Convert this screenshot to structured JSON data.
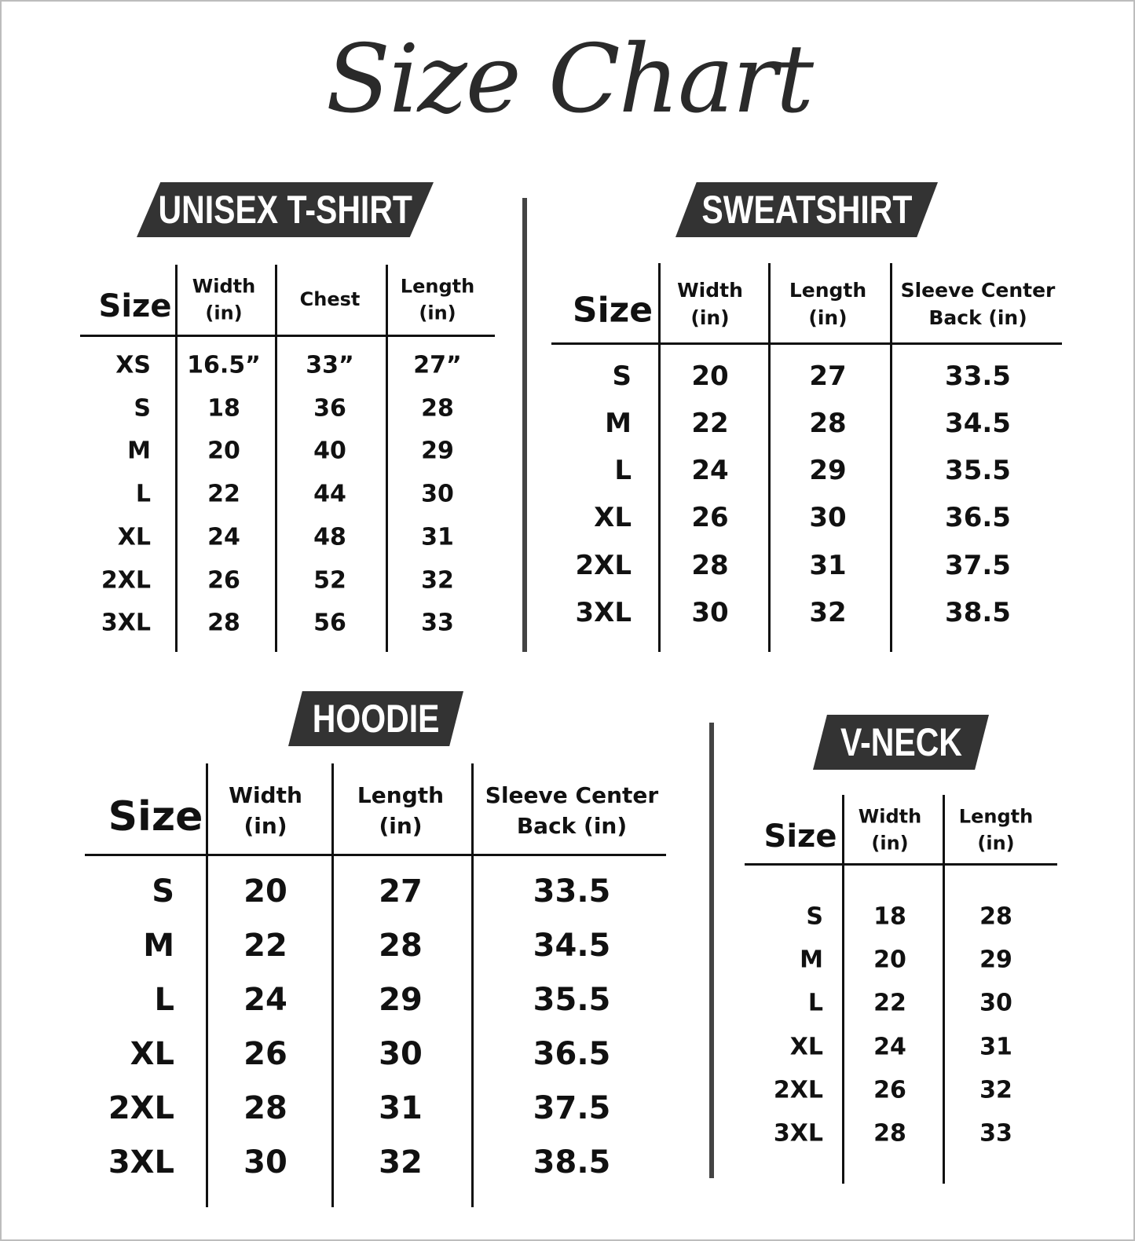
{
  "title": "Size Chart",
  "tables": [
    {
      "name": "UNISEX T-SHIRT",
      "headers": [
        "Size",
        "Width (in)",
        "Chest",
        "Length (in)"
      ],
      "rows": [
        [
          "XS",
          "16.5”",
          "33”",
          "27”"
        ],
        [
          "S",
          "18",
          "36",
          "28"
        ],
        [
          "M",
          "20",
          "40",
          "29"
        ],
        [
          "L",
          "22",
          "44",
          "30"
        ],
        [
          "XL",
          "24",
          "48",
          "31"
        ],
        [
          "2XL",
          "26",
          "52",
          "32"
        ],
        [
          "3XL",
          "28",
          "56",
          "33"
        ]
      ]
    },
    {
      "name": "SWEATSHIRT",
      "headers": [
        "Size",
        "Width (in)",
        "Length (in)",
        "Sleeve Center Back (in)"
      ],
      "rows": [
        [
          "S",
          "20",
          "27",
          "33.5"
        ],
        [
          "M",
          "22",
          "28",
          "34.5"
        ],
        [
          "L",
          "24",
          "29",
          "35.5"
        ],
        [
          "XL",
          "26",
          "30",
          "36.5"
        ],
        [
          "2XL",
          "28",
          "31",
          "37.5"
        ],
        [
          "3XL",
          "30",
          "32",
          "38.5"
        ]
      ]
    },
    {
      "name": "HOODIE",
      "headers": [
        "Size",
        "Width (in)",
        "Length (in)",
        "Sleeve Center Back (in)"
      ],
      "rows": [
        [
          "S",
          "20",
          "27",
          "33.5"
        ],
        [
          "M",
          "22",
          "28",
          "34.5"
        ],
        [
          "L",
          "24",
          "29",
          "35.5"
        ],
        [
          "XL",
          "26",
          "30",
          "36.5"
        ],
        [
          "2XL",
          "28",
          "31",
          "37.5"
        ],
        [
          "3XL",
          "30",
          "32",
          "38.5"
        ]
      ]
    },
    {
      "name": "V-NECK",
      "headers": [
        "Size",
        "Width (in)",
        "Length (in)"
      ],
      "rows": [
        [
          "S",
          "18",
          "28"
        ],
        [
          "M",
          "20",
          "29"
        ],
        [
          "L",
          "22",
          "30"
        ],
        [
          "XL",
          "24",
          "31"
        ],
        [
          "2XL",
          "26",
          "32"
        ],
        [
          "3XL",
          "28",
          "33"
        ]
      ]
    }
  ]
}
